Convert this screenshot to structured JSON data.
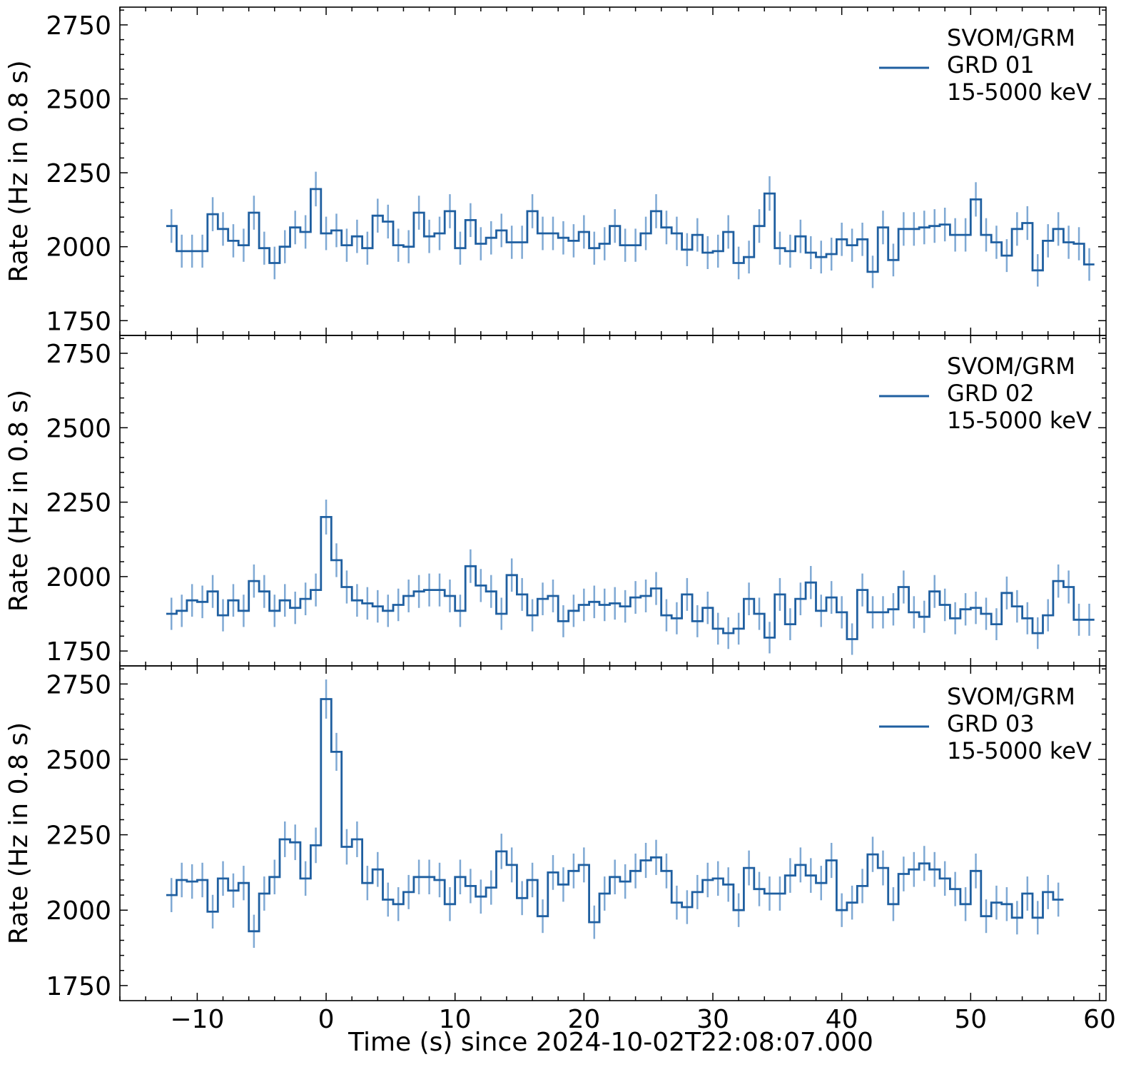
{
  "figure": {
    "xlabel": "Time (s) since 2024-10-02T22:08:07.000",
    "ylabel": "Rate (Hz in 0.8 s)",
    "x_tick_labels": [
      "−10",
      "0",
      "10",
      "20",
      "30",
      "40",
      "50",
      "60"
    ],
    "y_tick_labels": [
      "1750",
      "2000",
      "2250",
      "2500",
      "2750"
    ],
    "line_color": "#1f5fa0",
    "error_color": "#7fa9d4"
  },
  "chart_data": [
    {
      "type": "line",
      "style": "step",
      "xlim": [
        -16.0,
        60.5
      ],
      "ylim": [
        1700,
        2810
      ],
      "x_ticks": [
        -10,
        0,
        10,
        20,
        30,
        40,
        50,
        60
      ],
      "y_ticks": [
        1750,
        2000,
        2250,
        2500,
        2750
      ],
      "bin_width": 0.8,
      "x_start": -12.4,
      "legend": {
        "lines": [
          "SVOM/GRM",
          "GRD 01",
          "15-5000 keV"
        ],
        "position": "upper right"
      },
      "series": [
        {
          "name": "SVOM/GRM GRD 01 15-5000 keV",
          "values": [
            2070,
            1985,
            1985,
            1985,
            2110,
            2060,
            2020,
            2005,
            2115,
            1995,
            1945,
            2000,
            2065,
            2050,
            2195,
            2045,
            2055,
            2005,
            2035,
            1995,
            2105,
            2085,
            2005,
            2000,
            2115,
            2035,
            2045,
            2120,
            1995,
            2090,
            2010,
            2030,
            2055,
            2015,
            2015,
            2120,
            2045,
            2045,
            2030,
            2020,
            2050,
            1995,
            2010,
            2070,
            2005,
            2005,
            2045,
            2120,
            2065,
            2045,
            1990,
            2040,
            1980,
            1985,
            2050,
            1945,
            1965,
            2070,
            2180,
            1995,
            1985,
            2035,
            1980,
            1965,
            1975,
            2025,
            2005,
            2025,
            1915,
            2065,
            1955,
            2060,
            2060,
            2065,
            2070,
            2075,
            2040,
            2040,
            2160,
            2040,
            2015,
            1970,
            2060,
            2080,
            1920,
            2020,
            2060,
            2015,
            2010,
            1940
          ]
        }
      ]
    },
    {
      "type": "line",
      "style": "step",
      "xlim": [
        -16.0,
        60.5
      ],
      "ylim": [
        1700,
        2810
      ],
      "x_ticks": [
        -10,
        0,
        10,
        20,
        30,
        40,
        50,
        60
      ],
      "y_ticks": [
        1750,
        2000,
        2250,
        2500,
        2750
      ],
      "bin_width": 0.8,
      "x_start": -12.4,
      "legend": {
        "lines": [
          "SVOM/GRM",
          "GRD 02",
          "15-5000 keV"
        ],
        "position": "upper right"
      },
      "series": [
        {
          "name": "SVOM/GRM GRD 02 15-5000 keV",
          "values": [
            1875,
            1885,
            1920,
            1915,
            1950,
            1870,
            1920,
            1885,
            1985,
            1950,
            1885,
            1920,
            1895,
            1925,
            1955,
            2200,
            2055,
            1965,
            1920,
            1910,
            1900,
            1885,
            1905,
            1935,
            1950,
            1955,
            1955,
            1935,
            1885,
            2035,
            1970,
            1950,
            1875,
            2005,
            1940,
            1870,
            1925,
            1935,
            1850,
            1885,
            1905,
            1915,
            1905,
            1910,
            1900,
            1930,
            1935,
            1960,
            1870,
            1860,
            1940,
            1850,
            1895,
            1825,
            1810,
            1825,
            1925,
            1875,
            1795,
            1940,
            1840,
            1925,
            1980,
            1885,
            1930,
            1880,
            1790,
            1955,
            1880,
            1880,
            1890,
            1965,
            1880,
            1865,
            1950,
            1905,
            1860,
            1890,
            1895,
            1875,
            1840,
            1945,
            1900,
            1860,
            1810,
            1870,
            1985,
            1965,
            1855,
            1855
          ]
        }
      ]
    },
    {
      "type": "line",
      "style": "step",
      "xlim": [
        -16.0,
        60.5
      ],
      "ylim": [
        1700,
        2810
      ],
      "x_ticks": [
        -10,
        0,
        10,
        20,
        30,
        40,
        50,
        60
      ],
      "y_ticks": [
        1750,
        2000,
        2250,
        2500,
        2750
      ],
      "bin_width": 0.8,
      "x_start": -12.4,
      "legend": {
        "lines": [
          "SVOM/GRM",
          "GRD 03",
          "15-5000 keV"
        ],
        "position": "upper right"
      },
      "series": [
        {
          "name": "SVOM/GRM GRD 03 15-5000 keV",
          "values": [
            2050,
            2100,
            2095,
            2100,
            1995,
            2105,
            2065,
            2090,
            1930,
            2055,
            2110,
            2235,
            2225,
            2105,
            2215,
            2700,
            2525,
            2210,
            2235,
            2090,
            2135,
            2035,
            2020,
            2060,
            2110,
            2110,
            2100,
            2020,
            2110,
            2080,
            2045,
            2075,
            2195,
            2150,
            2040,
            2100,
            1980,
            2125,
            2085,
            2130,
            2150,
            1960,
            2055,
            2110,
            2095,
            2130,
            2165,
            2175,
            2130,
            2025,
            2010,
            2060,
            2100,
            2105,
            2085,
            2000,
            2140,
            2070,
            2055,
            2055,
            2115,
            2150,
            2115,
            2090,
            2165,
            2000,
            2025,
            2080,
            2185,
            2140,
            2020,
            2120,
            2135,
            2155,
            2135,
            2105,
            2070,
            2020,
            2130,
            1980,
            2025,
            2020,
            1975,
            2055,
            1975,
            2060,
            2035
          ]
        }
      ]
    }
  ]
}
